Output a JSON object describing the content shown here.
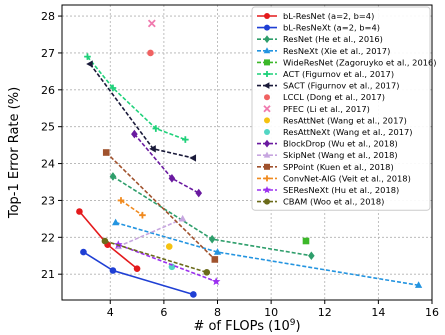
{
  "chart_data": {
    "type": "scatter",
    "xlabel": "# of FLOPs (10",
    "xlabel_sup": "9",
    "xlabel_close": ")",
    "ylabel": "Top-1 Error Rate (%)",
    "xlim": [
      2.2,
      16.0
    ],
    "ylim": [
      20.3,
      28.3
    ],
    "x_ticks": [
      4,
      6,
      8,
      10,
      12,
      14,
      16
    ],
    "y_ticks": [
      21,
      22,
      23,
      24,
      25,
      26,
      27,
      28
    ],
    "grid": true,
    "legend_position": "upper-right",
    "series": [
      {
        "name": "bL-ResNet (a=2, b=4)",
        "color": "#e41a1c",
        "marker": "circle",
        "linestyle": "solid",
        "x": [
          2.85,
          3.9,
          5.0
        ],
        "y": [
          22.7,
          21.8,
          21.15
        ]
      },
      {
        "name": "bL-ResNeXt (a=2, b=4)",
        "color": "#1f3fd4",
        "marker": "circle",
        "linestyle": "solid",
        "x": [
          3.0,
          4.1,
          7.1
        ],
        "y": [
          21.6,
          21.1,
          20.45
        ]
      },
      {
        "name": "ResNet (He et al., 2016)",
        "color": "#2e9e6b",
        "marker": "diamond",
        "linestyle": "dashed",
        "x": [
          4.1,
          7.8,
          11.5
        ],
        "y": [
          23.65,
          21.95,
          21.5
        ]
      },
      {
        "name": "ResNeXt (Xie et al., 2017)",
        "color": "#2394e0",
        "marker": "triangle",
        "linestyle": "dashed",
        "x": [
          4.2,
          8.0,
          15.5
        ],
        "y": [
          22.4,
          21.6,
          20.7
        ]
      },
      {
        "name": "WideResNet (Zagoruyko et al., 2016)",
        "color": "#3cb829",
        "marker": "square",
        "linestyle": "dashed",
        "x": [
          11.3
        ],
        "y": [
          21.9
        ]
      },
      {
        "name": "ACT (Figurnov et al., 2017)",
        "color": "#1fd17a",
        "marker": "plus",
        "linestyle": "dashed",
        "x": [
          3.15,
          4.1,
          5.7,
          6.8
        ],
        "y": [
          26.9,
          26.05,
          24.95,
          24.65
        ]
      },
      {
        "name": "SACT (Figurnov et al., 2017)",
        "color": "#1a1a3a",
        "marker": "triangle-left",
        "linestyle": "dashed",
        "x": [
          3.25,
          5.6,
          7.1
        ],
        "y": [
          26.7,
          24.4,
          24.15
        ]
      },
      {
        "name": "LCCL (Dong et al., 2017)",
        "color": "#f06262",
        "marker": "circle",
        "linestyle": "none",
        "x": [
          5.5
        ],
        "y": [
          27.0
        ]
      },
      {
        "name": "PFEC (Li et al., 2017)",
        "color": "#f07aae",
        "marker": "x",
        "linestyle": "none",
        "x": [
          5.55
        ],
        "y": [
          27.8
        ]
      },
      {
        "name": "ResAttNet (Wang et al., 2017)",
        "color": "#f5c211",
        "marker": "circle",
        "linestyle": "none",
        "x": [
          6.2
        ],
        "y": [
          21.75
        ]
      },
      {
        "name": "ResAttNeXt (Wang et al., 2017)",
        "color": "#52d6c4",
        "marker": "circle",
        "linestyle": "none",
        "x": [
          6.3
        ],
        "y": [
          21.2
        ]
      },
      {
        "name": "BlockDrop (Wu et al., 2018)",
        "color": "#6a1aa0",
        "marker": "diamond",
        "linestyle": "dashed",
        "x": [
          4.9,
          6.3,
          7.3
        ],
        "y": [
          24.8,
          23.6,
          23.2
        ]
      },
      {
        "name": "SkipNet (Wang et al., 2018)",
        "color": "#c7a6e0",
        "marker": "triangle",
        "linestyle": "dashed",
        "x": [
          4.3,
          6.7
        ],
        "y": [
          21.75,
          22.5
        ]
      },
      {
        "name": "SPPoint (Kuen et al., 2018)",
        "color": "#a0522d",
        "marker": "square",
        "linestyle": "dashed",
        "x": [
          3.85,
          7.9
        ],
        "y": [
          24.3,
          21.4
        ]
      },
      {
        "name": "ConvNet-AIG (Veit et al., 2018)",
        "color": "#f08a1f",
        "marker": "plus",
        "linestyle": "dashed",
        "x": [
          4.4,
          5.2
        ],
        "y": [
          23.0,
          22.6
        ]
      },
      {
        "name": "SEResNeXt (Hu et al., 2018)",
        "color": "#9b30f0",
        "marker": "star",
        "linestyle": "dashed",
        "x": [
          4.3,
          7.95
        ],
        "y": [
          21.8,
          20.8
        ]
      },
      {
        "name": "CBAM (Woo et al., 2018)",
        "color": "#6b6b1a",
        "marker": "circle",
        "linestyle": "dashed",
        "x": [
          3.8,
          7.6
        ],
        "y": [
          21.9,
          21.05
        ]
      }
    ]
  }
}
